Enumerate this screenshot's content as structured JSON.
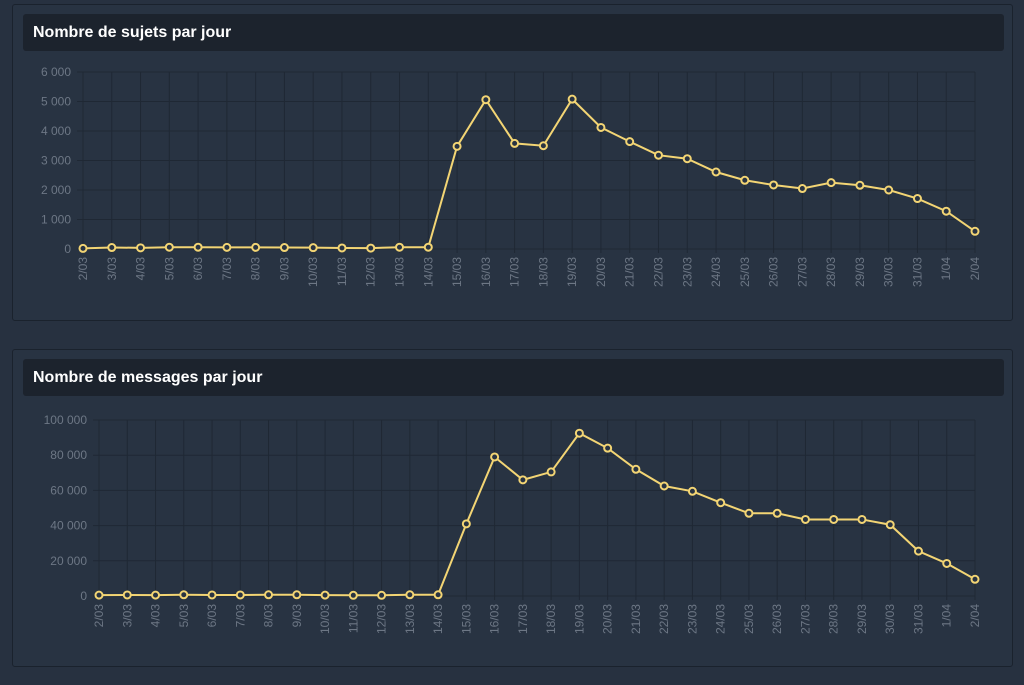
{
  "charts": [
    {
      "id": "topics",
      "title": "Nombre de sujets par jour"
    },
    {
      "id": "messages",
      "title": "Nombre de messages par jour"
    }
  ],
  "chart_data": [
    {
      "type": "line",
      "title": "Nombre de sujets par jour",
      "xlabel": "",
      "ylabel": "",
      "ylim": [
        0,
        6000
      ],
      "yticks": [
        "0",
        "1 000",
        "2 000",
        "3 000",
        "4 000",
        "5 000",
        "6 000"
      ],
      "grid": true,
      "categories": [
        "2/03",
        "3/03",
        "4/03",
        "5/03",
        "6/03",
        "7/03",
        "8/03",
        "9/03",
        "10/03",
        "11/03",
        "12/03",
        "13/03",
        "14/03",
        "15/03",
        "16/03",
        "17/03",
        "18/03",
        "19/03",
        "20/03",
        "21/03",
        "22/03",
        "23/03",
        "24/03",
        "25/03",
        "26/03",
        "27/03",
        "28/03",
        "29/03",
        "30/03",
        "31/03",
        "1/04",
        "2/04"
      ],
      "series": [
        {
          "color": "#f3d574",
          "values": [
            20,
            50,
            40,
            60,
            60,
            55,
            55,
            50,
            45,
            35,
            30,
            60,
            60,
            3480,
            5060,
            3580,
            3500,
            5080,
            4120,
            3640,
            3180,
            3060,
            2610,
            2330,
            2170,
            2050,
            2250,
            2160,
            2000,
            1710,
            1280,
            600
          ]
        }
      ]
    },
    {
      "type": "line",
      "title": "Nombre de messages par jour",
      "xlabel": "",
      "ylabel": "",
      "ylim": [
        0,
        100000
      ],
      "yticks": [
        "0",
        "20 000",
        "40 000",
        "60 000",
        "80 000",
        "100 000"
      ],
      "grid": true,
      "categories": [
        "2/03",
        "3/03",
        "4/03",
        "5/03",
        "6/03",
        "7/03",
        "8/03",
        "9/03",
        "10/03",
        "11/03",
        "12/03",
        "13/03",
        "14/03",
        "15/03",
        "16/03",
        "17/03",
        "18/03",
        "19/03",
        "20/03",
        "21/03",
        "22/03",
        "23/03",
        "24/03",
        "25/03",
        "26/03",
        "27/03",
        "28/03",
        "29/03",
        "30/03",
        "31/03",
        "1/04",
        "2/04"
      ],
      "series": [
        {
          "color": "#f3d574",
          "values": [
            500,
            600,
            500,
            700,
            600,
            600,
            700,
            700,
            500,
            400,
            400,
            700,
            700,
            41000,
            79000,
            66000,
            70500,
            92500,
            84000,
            72000,
            62500,
            59500,
            53000,
            47000,
            47000,
            43500,
            43500,
            43500,
            40500,
            25500,
            18500,
            9500
          ]
        }
      ]
    }
  ]
}
